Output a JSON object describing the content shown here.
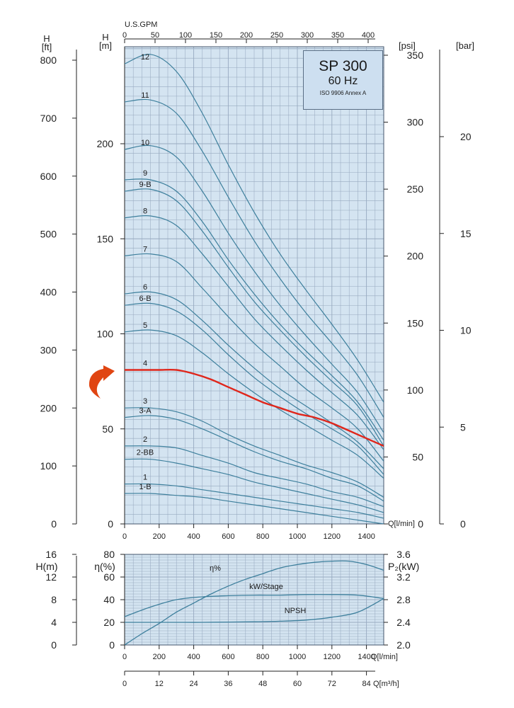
{
  "title_box": {
    "model": "SP 300",
    "frequency": "60 Hz",
    "standard": "ISO 9906 Annex A"
  },
  "colors": {
    "grid_bg": "#d4e4f1",
    "grid_line": "#98aac0",
    "curve": "#3d7f9c",
    "highlight": "#e0261b",
    "arrow": "#e04512"
  },
  "chart_data": [
    {
      "type": "line",
      "panel": "head",
      "x_unit_bottom": "Q[l/min]",
      "x_unit_top": "U.S.GPM",
      "xlim": [
        0,
        1500
      ],
      "x_ticks": [
        0,
        200,
        400,
        600,
        800,
        1000,
        1200,
        1400
      ],
      "x_ticks_gpm": [
        0,
        50,
        100,
        150,
        200,
        250,
        300,
        350,
        400
      ],
      "left_axis_ft": {
        "label": "H",
        "unit": "[ft]",
        "ticks": [
          0,
          100,
          200,
          300,
          400,
          500,
          600,
          700,
          800
        ]
      },
      "left_axis_m": {
        "label": "H",
        "unit": "[m]",
        "ticks": [
          0,
          50,
          100,
          150,
          200
        ],
        "ylim": [
          0,
          250
        ]
      },
      "right_axis_psi": {
        "unit": "[psi]",
        "ticks": [
          0,
          50,
          100,
          150,
          200,
          250,
          300,
          350
        ]
      },
      "right_axis_bar": {
        "unit": "[bar]",
        "ticks": [
          0,
          5,
          10,
          15,
          20
        ]
      },
      "highlighted_series": "4",
      "series": [
        {
          "name": "12",
          "x": [
            0,
            150,
            300,
            450,
            600,
            750,
            900,
            1050,
            1200,
            1350,
            1500
          ],
          "y": [
            242,
            247,
            238,
            216,
            189,
            164,
            142,
            123,
            105,
            86,
            64
          ]
        },
        {
          "name": "11",
          "x": [
            0,
            150,
            300,
            450,
            600,
            750,
            900,
            1050,
            1200,
            1350,
            1500
          ],
          "y": [
            222,
            223,
            216,
            196,
            172,
            149,
            129,
            111,
            95,
            78,
            56
          ]
        },
        {
          "name": "10",
          "x": [
            0,
            150,
            300,
            450,
            600,
            750,
            900,
            1050,
            1200,
            1350,
            1500
          ],
          "y": [
            197,
            199,
            193,
            175,
            153,
            133,
            115,
            99,
            84,
            69,
            48
          ]
        },
        {
          "name": "9",
          "x": [
            0,
            150,
            300,
            450,
            600,
            750,
            900,
            1050,
            1200,
            1350,
            1500
          ],
          "y": [
            181,
            181,
            175,
            159,
            139,
            121,
            105,
            91,
            78,
            64,
            44
          ]
        },
        {
          "name": "9-B",
          "x": [
            0,
            150,
            300,
            450,
            600,
            750,
            900,
            1050,
            1200,
            1350,
            1500
          ],
          "y": [
            175,
            176,
            170,
            154,
            135,
            117,
            102,
            88,
            75,
            62,
            41
          ]
        },
        {
          "name": "8",
          "x": [
            0,
            150,
            300,
            450,
            600,
            750,
            900,
            1050,
            1200,
            1350,
            1500
          ],
          "y": [
            161,
            162,
            157,
            142,
            125,
            108,
            94,
            81,
            69,
            57,
            39
          ]
        },
        {
          "name": "7",
          "x": [
            0,
            150,
            300,
            450,
            600,
            750,
            900,
            1050,
            1200,
            1350,
            1500
          ],
          "y": [
            141,
            142,
            138,
            124,
            109,
            95,
            83,
            71,
            61,
            50,
            33
          ]
        },
        {
          "name": "6",
          "x": [
            0,
            150,
            300,
            450,
            600,
            750,
            900,
            1050,
            1200,
            1350,
            1500
          ],
          "y": [
            121,
            122,
            118,
            107,
            94,
            82,
            71,
            62,
            53,
            43,
            29
          ]
        },
        {
          "name": "6-B",
          "x": [
            0,
            150,
            300,
            450,
            600,
            750,
            900,
            1050,
            1200,
            1350,
            1500
          ],
          "y": [
            115,
            116,
            112,
            102,
            89,
            77,
            67,
            58,
            50,
            41,
            26
          ]
        },
        {
          "name": "5",
          "x": [
            0,
            150,
            300,
            450,
            600,
            750,
            900,
            1050,
            1200,
            1350,
            1500
          ],
          "y": [
            101,
            102,
            99,
            90,
            79,
            69,
            60,
            52,
            44,
            36,
            24
          ]
        },
        {
          "name": "4",
          "x": [
            0,
            100,
            200,
            300,
            400,
            500,
            600,
            700,
            800,
            900,
            1000,
            1100,
            1200,
            1300,
            1400,
            1500
          ],
          "y": [
            81,
            81,
            81,
            81,
            79,
            76,
            72,
            68,
            64,
            61,
            58,
            56,
            53,
            49,
            45,
            41
          ]
        },
        {
          "name": "3",
          "x": [
            0,
            150,
            300,
            450,
            600,
            750,
            900,
            1050,
            1200,
            1350,
            1500
          ],
          "y": [
            61,
            61,
            59,
            54,
            47,
            41,
            36,
            31,
            27,
            22,
            14
          ]
        },
        {
          "name": "3-A",
          "x": [
            0,
            150,
            300,
            450,
            600,
            750,
            900,
            1050,
            1200,
            1350,
            1500
          ],
          "y": [
            56,
            57,
            55,
            50,
            44,
            38,
            33,
            29,
            24,
            20,
            12
          ]
        },
        {
          "name": "2",
          "x": [
            0,
            150,
            300,
            450,
            600,
            750,
            900,
            1050,
            1200,
            1350,
            1500
          ],
          "y": [
            41,
            41,
            40,
            36,
            32,
            27,
            24,
            21,
            17,
            14,
            9
          ]
        },
        {
          "name": "2-BB",
          "x": [
            0,
            150,
            300,
            450,
            600,
            750,
            900,
            1050,
            1200,
            1350,
            1500
          ],
          "y": [
            34,
            34,
            32,
            29,
            26,
            22,
            19,
            16,
            13,
            10,
            6
          ]
        },
        {
          "name": "1",
          "x": [
            0,
            150,
            300,
            450,
            600,
            750,
            900,
            1050,
            1200,
            1350,
            1500
          ],
          "y": [
            21,
            21,
            20,
            18,
            16,
            14,
            12,
            10,
            8,
            6,
            3
          ]
        },
        {
          "name": "1-B",
          "x": [
            0,
            150,
            300,
            450,
            600,
            750,
            900,
            1050,
            1200,
            1350,
            1500
          ],
          "y": [
            16,
            16,
            15,
            14,
            12,
            10,
            8,
            6,
            4,
            2,
            0
          ]
        }
      ]
    },
    {
      "type": "line",
      "panel": "performance",
      "x_unit_bottom": "Q[l/min]",
      "x_unit_m3h": "Q[m³/h]",
      "xlim": [
        0,
        1500
      ],
      "x_ticks": [
        0,
        200,
        400,
        600,
        800,
        1000,
        1200,
        1400
      ],
      "x_ticks_m3h": [
        0,
        12,
        24,
        36,
        48,
        60,
        72,
        84
      ],
      "left_axis_h": {
        "label": "H(m)",
        "ticks": [
          0,
          4,
          8,
          12,
          16
        ],
        "ylim": [
          0,
          16
        ]
      },
      "left_axis_eta": {
        "label": "η(%)",
        "ticks": [
          0,
          20,
          40,
          60,
          80
        ],
        "ylim": [
          0,
          80
        ]
      },
      "right_axis_p2": {
        "label": "P₂(kW)",
        "ticks": [
          2.0,
          2.4,
          2.8,
          3.2,
          3.6
        ],
        "ylim": [
          2.0,
          3.6
        ]
      },
      "series": [
        {
          "name": "η%",
          "axis": "eta",
          "x": [
            0,
            100,
            200,
            300,
            400,
            500,
            600,
            700,
            800,
            900,
            1000,
            1100,
            1200,
            1300,
            1400,
            1500
          ],
          "y": [
            0,
            10,
            19,
            29,
            37,
            45,
            52,
            58,
            63,
            68,
            71,
            73,
            74,
            74,
            71,
            66
          ]
        },
        {
          "name": "kW/Stage",
          "axis": "p2",
          "x": [
            0,
            150,
            300,
            450,
            600,
            750,
            900,
            1050,
            1200,
            1350,
            1500
          ],
          "y": [
            2.5,
            2.67,
            2.8,
            2.85,
            2.87,
            2.88,
            2.88,
            2.89,
            2.89,
            2.88,
            2.82
          ]
        },
        {
          "name": "NPSH",
          "axis": "h",
          "x": [
            0,
            150,
            300,
            450,
            600,
            750,
            900,
            1050,
            1200,
            1350,
            1500
          ],
          "y": [
            4.0,
            4.0,
            4.0,
            4.0,
            4.05,
            4.1,
            4.2,
            4.4,
            4.9,
            5.8,
            8.2
          ]
        }
      ]
    }
  ]
}
